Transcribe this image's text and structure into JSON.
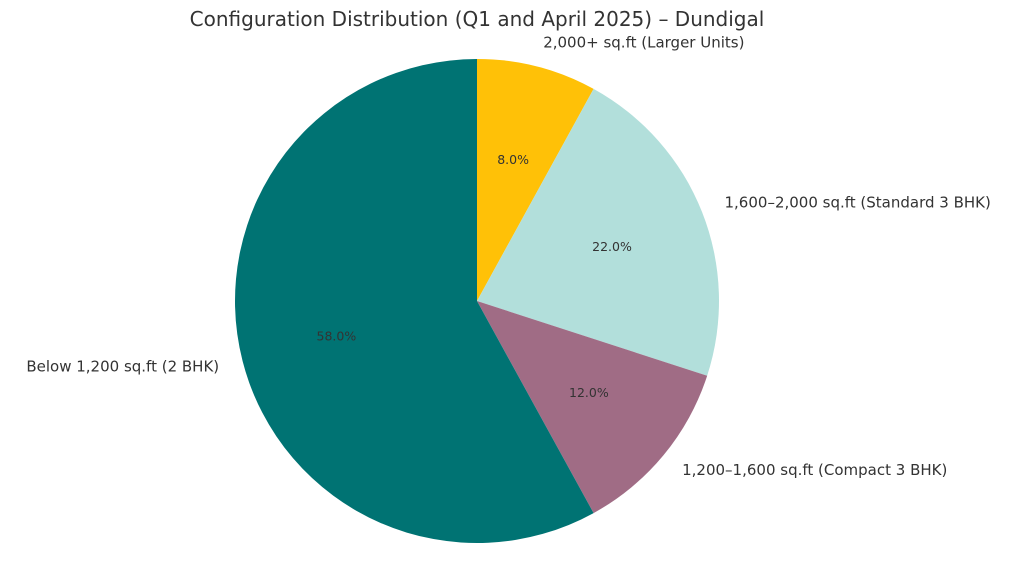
{
  "chart_data": {
    "type": "pie",
    "title": "Configuration Distribution (Q1 and April 2025) – Dundigal",
    "slices": [
      {
        "label": "2,000+ sq.ft (Larger Units)",
        "value": 8.0,
        "pct_label": "8.0%",
        "color": "#FFC107"
      },
      {
        "label": "1,600–2,000 sq.ft (Standard 3 BHK)",
        "value": 22.0,
        "pct_label": "22.0%",
        "color": "#B2DFDB"
      },
      {
        "label": "1,200–1,600 sq.ft (Compact 3 BHK)",
        "value": 12.0,
        "pct_label": "12.0%",
        "color": "#A06C85"
      },
      {
        "label": "Below 1,200 sq.ft (2 BHK)",
        "value": 58.0,
        "pct_label": "58.0%",
        "color": "#007373"
      }
    ],
    "start_angle": "top",
    "direction": "clockwise",
    "legend": "none"
  }
}
